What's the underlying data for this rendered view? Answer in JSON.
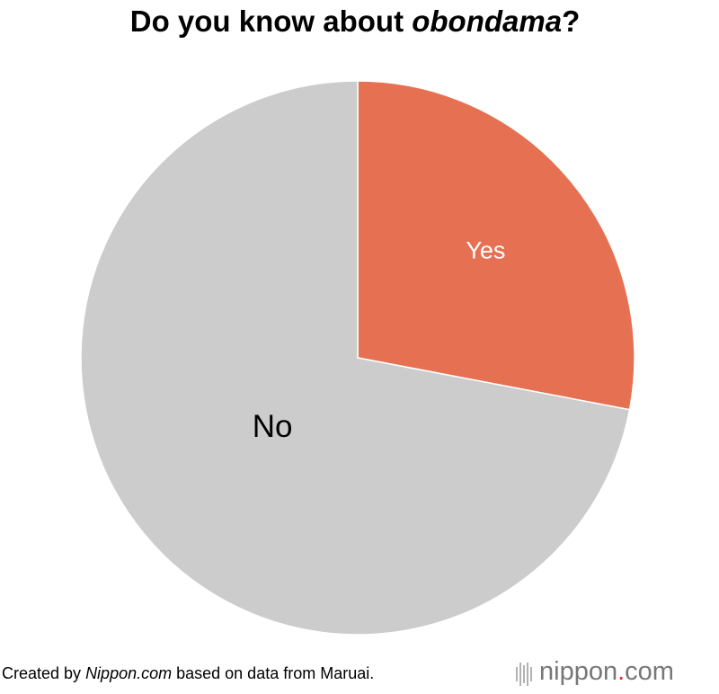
{
  "chart_data": {
    "type": "pie",
    "title": [
      "Do you know about ",
      "obondama",
      "?"
    ],
    "categories": [
      "Yes",
      "No"
    ],
    "values": [
      28,
      72
    ],
    "colors": [
      "#e67052",
      "#cccccc"
    ],
    "label_colors": [
      "#ffffff",
      "#000000"
    ],
    "source": [
      "Created by ",
      "Nippon.com",
      " based on data from Maruai."
    ],
    "logo": [
      "nippon",
      ".",
      "com"
    ]
  }
}
